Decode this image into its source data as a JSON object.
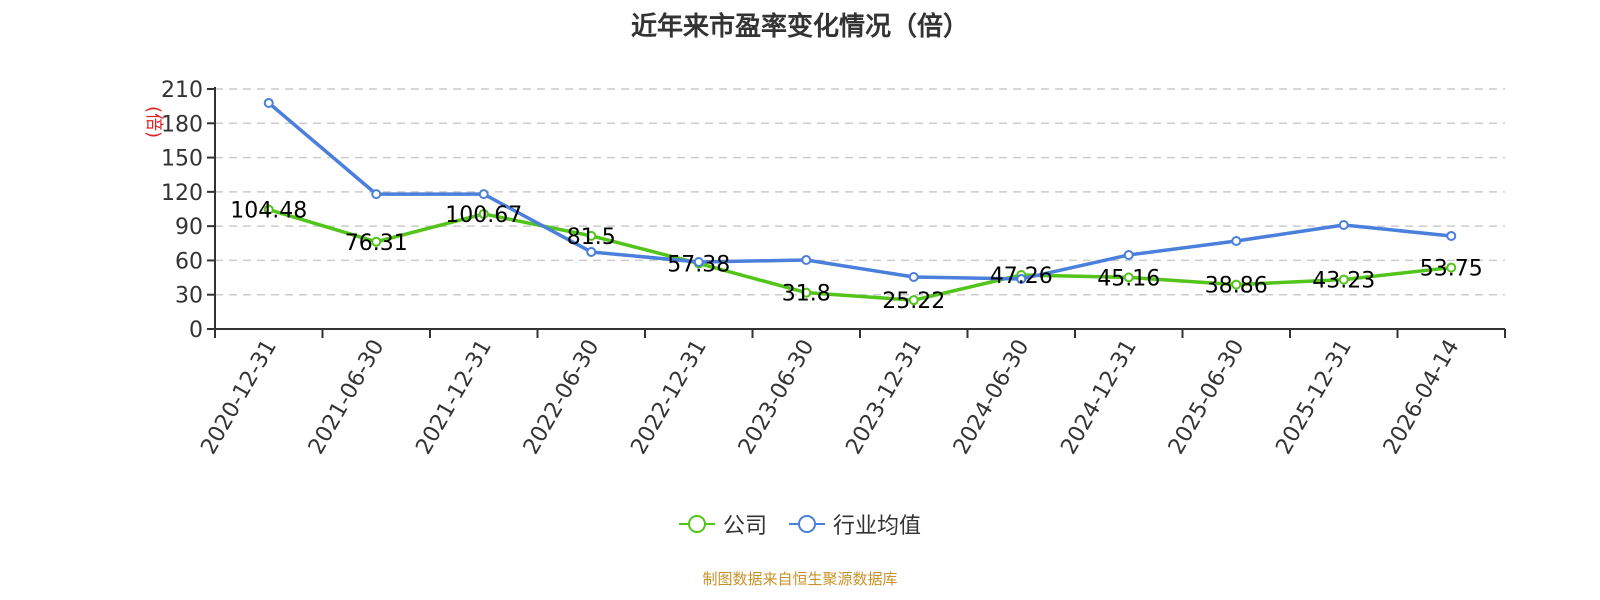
{
  "title": "近年来市盈率变化情况（倍）",
  "y_axis_name": "(倍)",
  "footer": "制图数据来自恒生聚源数据库",
  "legend": [
    {
      "label": "公司",
      "color": "#52c41a"
    },
    {
      "label": "行业均值",
      "color": "#4a7fdc"
    }
  ],
  "chart_data": {
    "type": "line",
    "title": "近年来市盈率变化情况（倍）",
    "xlabel": "",
    "ylabel": "(倍)",
    "ylim": [
      0,
      210
    ],
    "yticks": [
      0,
      30,
      60,
      90,
      120,
      150,
      180,
      210
    ],
    "grid": true,
    "legend_position": "bottom",
    "categories": [
      "2020-12-31",
      "2021-06-30",
      "2021-12-31",
      "2022-06-30",
      "2022-12-31",
      "2023-06-30",
      "2023-12-31",
      "2024-06-30",
      "2024-12-31",
      "2025-06-30",
      "2025-12-31",
      "2026-04-14"
    ],
    "series": [
      {
        "name": "公司",
        "color": "#52c41a",
        "labels_shown": true,
        "values": [
          104.48,
          76.31,
          100.67,
          81.5,
          57.38,
          31.8,
          25.22,
          47.26,
          45.16,
          38.86,
          43.23,
          53.75
        ]
      },
      {
        "name": "行业均值",
        "color": "#4a7fdc",
        "labels_shown": false,
        "values": [
          197.8,
          118.0,
          118.0,
          67.4,
          58.6,
          60.4,
          45.5,
          43.8,
          64.8,
          77.0,
          91.0,
          81.4
        ]
      }
    ]
  }
}
